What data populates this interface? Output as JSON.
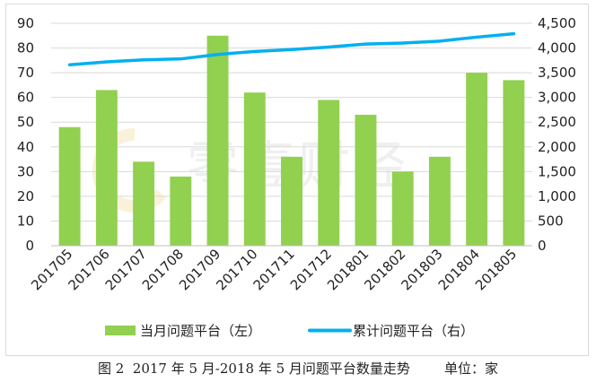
{
  "chart_data": {
    "type": "bar+line",
    "categories": [
      "201705",
      "201706",
      "201707",
      "201708",
      "201709",
      "201710",
      "201711",
      "201712",
      "201801",
      "201802",
      "201803",
      "201804",
      "201805"
    ],
    "series": [
      {
        "name": "当月问题平台（左）",
        "type": "bar",
        "axis": "left",
        "color": "#92d050",
        "values": [
          48,
          63,
          34,
          28,
          85,
          62,
          36,
          59,
          53,
          30,
          36,
          70,
          67
        ]
      },
      {
        "name": "累计问题平台（右）",
        "type": "line",
        "axis": "right",
        "color": "#00b0f0",
        "values": [
          3660,
          3720,
          3760,
          3780,
          3870,
          3930,
          3970,
          4020,
          4080,
          4100,
          4140,
          4220,
          4290
        ]
      }
    ],
    "y_left": {
      "min": 0,
      "max": 90,
      "step": 10,
      "tick_labels": [
        "0",
        "10",
        "20",
        "30",
        "40",
        "50",
        "60",
        "70",
        "80",
        "90"
      ]
    },
    "y_right": {
      "min": 0,
      "max": 4500,
      "step": 500,
      "tick_labels": [
        "0",
        "500",
        "1,000",
        "1,500",
        "2,000",
        "2,500",
        "3,000",
        "3,500",
        "4,000",
        "4,500"
      ]
    },
    "legend_position": "bottom",
    "watermark": "零壹财经"
  },
  "caption": "图 2  2017 年 5 月-2018 年 5 月问题平台数量走势        单位：家"
}
